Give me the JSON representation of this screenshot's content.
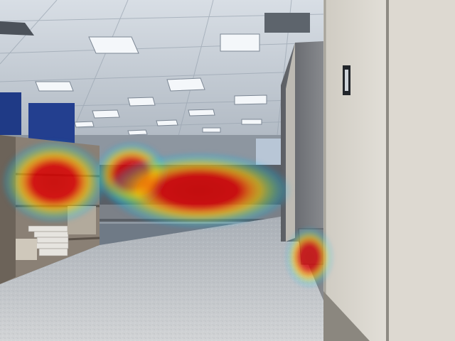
{
  "scene": {
    "kind": "office interior photo with saliency heatmap overlay",
    "palette": {
      "ceiling": "#cfd6dd",
      "ceiling_shadow": "#8e99a5",
      "floor": "#c9ccd0",
      "floor_far": "#a9afb6",
      "locker": "#d7d4cc",
      "locker_edge": "#a6a39b",
      "cabinet": "#9a8f82",
      "monitor": "#1f3f8f",
      "heat_hot": "#d40000",
      "heat_warm": "#ffd000",
      "heat_cool": "#00c8ff"
    }
  },
  "heatmap": {
    "spots": [
      {
        "name": "left-shelf-hotspot",
        "cx": 76,
        "cy": 256,
        "rx": 48,
        "ry": 38,
        "intensity": 1.0
      },
      {
        "name": "center-desk-hotspot-a",
        "cx": 185,
        "cy": 245,
        "rx": 34,
        "ry": 30,
        "intensity": 0.95
      },
      {
        "name": "center-desk-hotspot-b",
        "cx": 280,
        "cy": 268,
        "rx": 85,
        "ry": 35,
        "intensity": 1.0
      },
      {
        "name": "trash-bin-hotspot",
        "cx": 435,
        "cy": 362,
        "rx": 22,
        "ry": 28,
        "intensity": 0.9
      }
    ]
  }
}
